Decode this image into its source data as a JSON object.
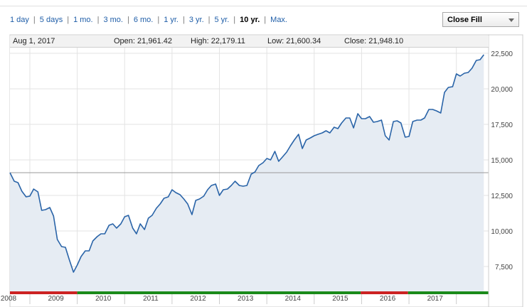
{
  "range_buttons": [
    {
      "label": "1 day",
      "active": false
    },
    {
      "label": "5 days",
      "active": false
    },
    {
      "label": "1 mo.",
      "active": false
    },
    {
      "label": "3 mo.",
      "active": false
    },
    {
      "label": "6 mo.",
      "active": false
    },
    {
      "label": "1 yr.",
      "active": false
    },
    {
      "label": "3 yr.",
      "active": false
    },
    {
      "label": "5 yr.",
      "active": false
    },
    {
      "label": "10 yr.",
      "active": true
    },
    {
      "label": "Max.",
      "active": false
    }
  ],
  "chart_type_select": {
    "value": "Close Fill"
  },
  "quote": {
    "date": "Aug 1, 2017",
    "open": "Open: 21,961.42",
    "high": "High: 22,179.11",
    "low": "Low: 21,600.34",
    "close": "Close: 21,948.10"
  },
  "colors": {
    "line": "#2a64a8",
    "fill": "#e6ecf3",
    "up_bar": "#1a8a1a",
    "down_bar": "#cc2222",
    "reference_line": "#999999"
  },
  "chart_data": {
    "type": "area",
    "title": "",
    "xlabel": "",
    "ylabel": "",
    "ylim": [
      5750,
      22900
    ],
    "xlim": [
      2007.58,
      2017.68
    ],
    "y_ticks": [
      "7,500",
      "10,000",
      "12,500",
      "15,000",
      "17,500",
      "20,000",
      "22,500"
    ],
    "y_tick_values": [
      7500,
      10000,
      12500,
      15000,
      17500,
      20000,
      22500
    ],
    "x_ticks": [
      "2008",
      "2009",
      "2010",
      "2011",
      "2012",
      "2013",
      "2014",
      "2015",
      "2016",
      "2017"
    ],
    "x_tick_values": [
      2008,
      2009,
      2010,
      2011,
      2012,
      2013,
      2014,
      2015,
      2016,
      2017
    ],
    "reference_value": 14100,
    "grid": true,
    "performance_bar": [
      {
        "from": 2007.58,
        "to": 2009.0,
        "direction": "down"
      },
      {
        "from": 2009.0,
        "to": 2014.98,
        "direction": "up"
      },
      {
        "from": 2014.98,
        "to": 2015.98,
        "direction": "down"
      },
      {
        "from": 2015.98,
        "to": 2017.68,
        "direction": "up"
      }
    ],
    "series": [
      {
        "x": [
          2007.58,
          2007.67,
          2007.75,
          2007.83,
          2007.92,
          2008.0,
          2008.08,
          2008.17,
          2008.25,
          2008.33,
          2008.42,
          2008.5,
          2008.58,
          2008.67,
          2008.75,
          2008.83,
          2008.92,
          2009.0,
          2009.08,
          2009.17,
          2009.25,
          2009.33,
          2009.42,
          2009.5,
          2009.58,
          2009.67,
          2009.75,
          2009.83,
          2009.92,
          2010.0,
          2010.08,
          2010.17,
          2010.25,
          2010.33,
          2010.42,
          2010.5,
          2010.58,
          2010.67,
          2010.75,
          2010.83,
          2010.92,
          2011.0,
          2011.08,
          2011.17,
          2011.25,
          2011.33,
          2011.42,
          2011.5,
          2011.58,
          2011.67,
          2011.75,
          2011.83,
          2011.92,
          2012.0,
          2012.08,
          2012.17,
          2012.25,
          2012.33,
          2012.42,
          2012.5,
          2012.58,
          2012.67,
          2012.75,
          2012.83,
          2012.92,
          2013.0,
          2013.08,
          2013.17,
          2013.25,
          2013.33,
          2013.42,
          2013.5,
          2013.58,
          2013.67,
          2013.75,
          2013.83,
          2013.92,
          2014.0,
          2014.08,
          2014.17,
          2014.25,
          2014.33,
          2014.42,
          2014.5,
          2014.58,
          2014.67,
          2014.75,
          2014.83,
          2014.92,
          2015.0,
          2015.08,
          2015.17,
          2015.25,
          2015.33,
          2015.42,
          2015.5,
          2015.58,
          2015.67,
          2015.75,
          2015.83,
          2015.92,
          2016.0,
          2016.08,
          2016.17,
          2016.25,
          2016.33,
          2016.42,
          2016.5,
          2016.58,
          2016.67,
          2016.75,
          2016.83,
          2016.92,
          2017.0,
          2017.08,
          2017.17,
          2017.25,
          2017.33,
          2017.42,
          2017.5,
          2017.58
        ],
        "values": [
          14100,
          13500,
          13400,
          12800,
          12400,
          12450,
          12950,
          12750,
          11450,
          11500,
          11650,
          11050,
          9400,
          8900,
          8850,
          8000,
          7100,
          7600,
          8200,
          8600,
          8600,
          9300,
          9600,
          9800,
          9800,
          10400,
          10500,
          10200,
          10500,
          11000,
          11100,
          10200,
          9800,
          10500,
          10100,
          10900,
          11100,
          11600,
          11900,
          12300,
          12400,
          12900,
          12700,
          12550,
          12250,
          11900,
          11150,
          12150,
          12250,
          12450,
          12900,
          13200,
          13300,
          12500,
          12900,
          12950,
          13200,
          13500,
          13200,
          13150,
          13200,
          14000,
          14150,
          14600,
          14800,
          15100,
          15000,
          15600,
          14900,
          15200,
          15550,
          16000,
          16400,
          16800,
          15800,
          16400,
          16550,
          16700,
          16800,
          16900,
          17050,
          16900,
          17300,
          17200,
          17600,
          17950,
          17950,
          17250,
          18250,
          17900,
          17900,
          18050,
          17650,
          17700,
          17800,
          16700,
          16400,
          17700,
          17750,
          17600,
          16600,
          16650,
          17700,
          17800,
          17800,
          17950,
          18550,
          18550,
          18450,
          18300,
          19750,
          20100,
          20150,
          21050,
          20900,
          21100,
          21150,
          21450,
          22000,
          22050,
          22400
        ]
      }
    ]
  }
}
